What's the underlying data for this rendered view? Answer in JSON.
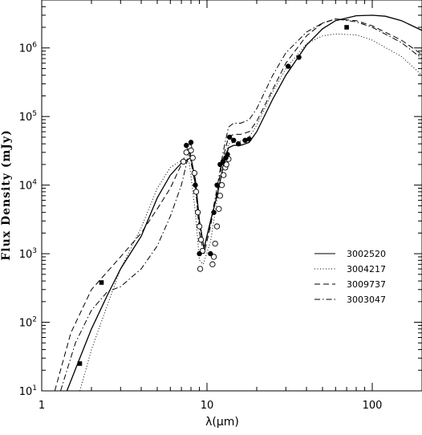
{
  "chart_data": {
    "type": "line",
    "title": "",
    "xlabel": "λ(μm)",
    "ylabel": "Flux Density (mJy)",
    "xscale": "log",
    "yscale": "log",
    "xlim": [
      1,
      200
    ],
    "ylim": [
      10,
      5000000
    ],
    "x_ticks": [
      {
        "value": 1,
        "label": "1"
      },
      {
        "value": 10,
        "label": "10"
      },
      {
        "value": 100,
        "label": "100"
      }
    ],
    "y_ticks": [
      {
        "value": 10,
        "base": "10",
        "exp": "1"
      },
      {
        "value": 100,
        "base": "10",
        "exp": "2"
      },
      {
        "value": 1000,
        "base": "10",
        "exp": "3"
      },
      {
        "value": 10000,
        "base": "10",
        "exp": "4"
      },
      {
        "value": 100000,
        "base": "10",
        "exp": "5"
      },
      {
        "value": 1000000,
        "base": "10",
        "exp": "6"
      }
    ],
    "grid": false,
    "legend_position": "right-middle",
    "series": [
      {
        "name": "3002520",
        "dash": "solid",
        "points": [
          [
            1.42,
            10
          ],
          [
            1.7,
            30
          ],
          [
            2,
            80
          ],
          [
            2.5,
            250
          ],
          [
            3,
            600
          ],
          [
            4,
            1800
          ],
          [
            5,
            6500
          ],
          [
            6,
            14000
          ],
          [
            7,
            21000
          ],
          [
            8,
            25000
          ],
          [
            8.5,
            12000
          ],
          [
            9,
            3000
          ],
          [
            9.6,
            1200
          ],
          [
            10.5,
            3000
          ],
          [
            11.5,
            7000
          ],
          [
            12.5,
            18000
          ],
          [
            13.5,
            35000
          ],
          [
            14.5,
            38000
          ],
          [
            16,
            38000
          ],
          [
            18,
            42000
          ],
          [
            20,
            60000
          ],
          [
            25,
            180000
          ],
          [
            30,
            400000
          ],
          [
            40,
            1100000
          ],
          [
            50,
            1900000
          ],
          [
            60,
            2500000
          ],
          [
            80,
            2950000
          ],
          [
            100,
            3000000
          ],
          [
            120,
            2900000
          ],
          [
            150,
            2500000
          ],
          [
            200,
            1800000
          ]
        ]
      },
      {
        "name": "3004217",
        "dash": "dotted",
        "points": [
          [
            1.7,
            10
          ],
          [
            2,
            40
          ],
          [
            2.5,
            180
          ],
          [
            3,
            600
          ],
          [
            4,
            2400
          ],
          [
            5,
            9000
          ],
          [
            6,
            18000
          ],
          [
            7,
            23000
          ],
          [
            7.8,
            22000
          ],
          [
            8.5,
            4000
          ],
          [
            9,
            800
          ],
          [
            9.5,
            700
          ],
          [
            10.5,
            1500
          ],
          [
            11.5,
            6000
          ],
          [
            12.5,
            20000
          ],
          [
            13.5,
            40000
          ],
          [
            14.5,
            42000
          ],
          [
            16,
            44000
          ],
          [
            18,
            50000
          ],
          [
            20,
            75000
          ],
          [
            25,
            230000
          ],
          [
            30,
            500000
          ],
          [
            40,
            1150000
          ],
          [
            50,
            1500000
          ],
          [
            60,
            1600000
          ],
          [
            80,
            1550000
          ],
          [
            100,
            1300000
          ],
          [
            150,
            750000
          ],
          [
            200,
            400000
          ]
        ]
      },
      {
        "name": "3009737",
        "dash": "dashed",
        "points": [
          [
            1.2,
            10
          ],
          [
            1.5,
            70
          ],
          [
            2,
            300
          ],
          [
            2.5,
            550
          ],
          [
            3,
            900
          ],
          [
            4,
            2000
          ],
          [
            5,
            4500
          ],
          [
            6,
            9000
          ],
          [
            7,
            20000
          ],
          [
            7.8,
            38000
          ],
          [
            8.5,
            10000
          ],
          [
            9,
            2000
          ],
          [
            9.6,
            1000
          ],
          [
            10.5,
            2500
          ],
          [
            11.5,
            8000
          ],
          [
            12.5,
            25000
          ],
          [
            13.5,
            50000
          ],
          [
            14.5,
            55000
          ],
          [
            16,
            55000
          ],
          [
            18,
            60000
          ],
          [
            20,
            85000
          ],
          [
            25,
            250000
          ],
          [
            30,
            600000
          ],
          [
            40,
            1500000
          ],
          [
            50,
            2300000
          ],
          [
            60,
            2650000
          ],
          [
            80,
            2500000
          ],
          [
            100,
            2100000
          ],
          [
            150,
            1300000
          ],
          [
            200,
            800000
          ]
        ]
      },
      {
        "name": "3003047",
        "dash": "dashdot",
        "points": [
          [
            1.3,
            10
          ],
          [
            1.6,
            50
          ],
          [
            2,
            150
          ],
          [
            2.5,
            280
          ],
          [
            3,
            330
          ],
          [
            4,
            600
          ],
          [
            5,
            1300
          ],
          [
            6,
            3500
          ],
          [
            7,
            10000
          ],
          [
            7.8,
            30000
          ],
          [
            8.5,
            10000
          ],
          [
            9,
            2500
          ],
          [
            9.6,
            1200
          ],
          [
            10.5,
            2800
          ],
          [
            11.5,
            9000
          ],
          [
            12.5,
            30000
          ],
          [
            13.5,
            70000
          ],
          [
            14.5,
            80000
          ],
          [
            16,
            80000
          ],
          [
            18,
            90000
          ],
          [
            20,
            130000
          ],
          [
            25,
            400000
          ],
          [
            30,
            850000
          ],
          [
            40,
            1700000
          ],
          [
            50,
            2300000
          ],
          [
            60,
            2650000
          ],
          [
            80,
            2400000
          ],
          [
            100,
            2000000
          ],
          [
            150,
            1200000
          ],
          [
            200,
            700000
          ]
        ]
      }
    ],
    "observations_filled_circles": [
      [
        7.5,
        38000
      ],
      [
        8,
        42000
      ],
      [
        8.5,
        10000
      ],
      [
        9,
        1000
      ],
      [
        10.5,
        1000
      ],
      [
        11,
        4000
      ],
      [
        11.5,
        10000
      ],
      [
        12,
        20000
      ],
      [
        12.5,
        22000
      ],
      [
        13,
        25000
      ],
      [
        13.3,
        28000
      ],
      [
        13.7,
        50000
      ],
      [
        14.5,
        45000
      ],
      [
        15.5,
        40000
      ],
      [
        17,
        45000
      ],
      [
        18,
        47000
      ],
      [
        31,
        540000
      ],
      [
        36,
        730000
      ]
    ],
    "observations_open_circles": [
      [
        7.2,
        22000
      ],
      [
        7.5,
        30000
      ],
      [
        7.8,
        36000
      ],
      [
        8,
        32000
      ],
      [
        8.2,
        25000
      ],
      [
        8.4,
        15000
      ],
      [
        8.6,
        8000
      ],
      [
        8.8,
        4000
      ],
      [
        9,
        2500
      ],
      [
        9.2,
        1600
      ],
      [
        9.4,
        1100
      ],
      [
        9.1,
        600
      ],
      [
        10.8,
        700
      ],
      [
        11,
        900
      ],
      [
        11.2,
        1400
      ],
      [
        11.5,
        2500
      ],
      [
        11.8,
        4500
      ],
      [
        12,
        7000
      ],
      [
        12.3,
        10000
      ],
      [
        12.6,
        14000
      ],
      [
        12.9,
        18000
      ],
      [
        13.1,
        20000
      ],
      [
        13.5,
        24000
      ]
    ],
    "observations_filled_squares": [
      [
        1.7,
        25
      ],
      [
        2.3,
        380
      ],
      [
        70,
        2000000
      ]
    ]
  }
}
